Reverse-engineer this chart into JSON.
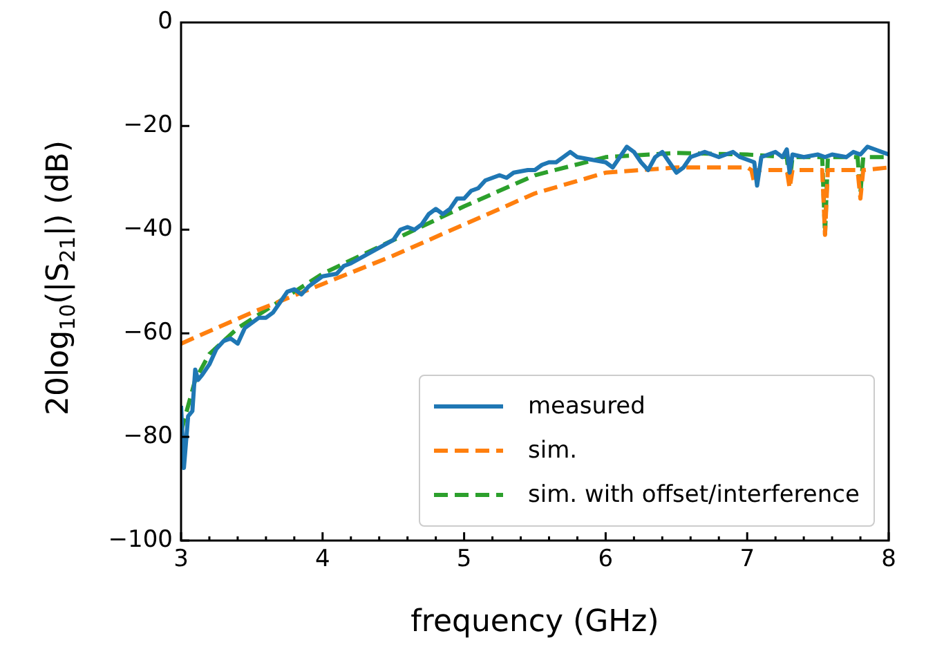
{
  "chart_data": {
    "type": "line",
    "xlabel": "frequency (GHz)",
    "ylabel": "20log$_{10}$(|S$_{21}$|) (dB)",
    "xlim": [
      3,
      8
    ],
    "xticks": [
      3,
      4,
      5,
      6,
      7,
      8
    ],
    "ylim": [
      -100,
      0
    ],
    "yticks": [
      {
        "value": -100,
        "label": "−100"
      },
      {
        "value": -80,
        "label": "−80"
      },
      {
        "value": -60,
        "label": "−60"
      },
      {
        "value": -40,
        "label": "−40"
      },
      {
        "value": -20,
        "label": "−20"
      },
      0
    ],
    "grid": false,
    "legend": "bottom right",
    "marker": "none",
    "series": [
      {
        "name": "measured",
        "color": "#1f77b4",
        "line_style": "solid",
        "x": [
          3.0,
          3.02,
          3.05,
          3.08,
          3.1,
          3.12,
          3.15,
          3.2,
          3.25,
          3.3,
          3.35,
          3.4,
          3.45,
          3.5,
          3.55,
          3.6,
          3.65,
          3.7,
          3.75,
          3.8,
          3.85,
          3.9,
          4.0,
          4.1,
          4.15,
          4.2,
          4.3,
          4.4,
          4.5,
          4.55,
          4.6,
          4.65,
          4.7,
          4.75,
          4.8,
          4.85,
          4.9,
          4.95,
          5.0,
          5.05,
          5.1,
          5.15,
          5.2,
          5.25,
          5.3,
          5.35,
          5.45,
          5.5,
          5.55,
          5.6,
          5.65,
          5.7,
          5.75,
          5.8,
          5.9,
          6.0,
          6.05,
          6.1,
          6.15,
          6.2,
          6.25,
          6.3,
          6.35,
          6.4,
          6.45,
          6.5,
          6.55,
          6.6,
          6.7,
          6.8,
          6.9,
          6.95,
          7.0,
          7.05,
          7.07,
          7.1,
          7.2,
          7.25,
          7.28,
          7.3,
          7.32,
          7.4,
          7.5,
          7.55,
          7.6,
          7.7,
          7.75,
          7.8,
          7.85,
          7.9,
          8.0
        ],
        "values": [
          -74,
          -86,
          -76,
          -75,
          -67,
          -69,
          -68,
          -66,
          -63,
          -61.5,
          -61,
          -62,
          -59,
          -58,
          -57,
          -57,
          -56,
          -54,
          -52,
          -51.5,
          -52.5,
          -51,
          -49,
          -48.5,
          -47,
          -46.5,
          -45,
          -43.5,
          -42,
          -40,
          -39.5,
          -40,
          -39,
          -37,
          -36,
          -37,
          -36,
          -34,
          -34,
          -32.5,
          -32,
          -30.5,
          -30,
          -29.5,
          -30,
          -29,
          -28.5,
          -28.5,
          -27.5,
          -27,
          -27,
          -26,
          -25,
          -26,
          -26.5,
          -27,
          -28,
          -26,
          -24,
          -25,
          -27,
          -28.5,
          -26,
          -25,
          -27,
          -29,
          -28,
          -26,
          -25,
          -26,
          -25,
          -26,
          -26.5,
          -27,
          -31.5,
          -26,
          -25,
          -26,
          -24.5,
          -29,
          -25.5,
          -26,
          -25.5,
          -26,
          -25.5,
          -26,
          -25,
          -25.5,
          -24,
          -24.5,
          -25.5
        ]
      },
      {
        "name": "sim.",
        "color": "#ff7f0e",
        "line_style": "dashed",
        "x": [
          3.0,
          3.5,
          4.0,
          4.5,
          5.0,
          5.5,
          6.0,
          6.5,
          7.0,
          7.03,
          7.05,
          7.07,
          7.28,
          7.3,
          7.32,
          7.53,
          7.55,
          7.57,
          7.78,
          7.8,
          7.82,
          8.0
        ],
        "values": [
          -62,
          -56,
          -50.5,
          -45,
          -39,
          -33,
          -29,
          -28,
          -28,
          -28.5,
          -31,
          -28.5,
          -28.5,
          -32,
          -28.5,
          -28.5,
          -41,
          -28.5,
          -28.5,
          -34,
          -28.5,
          -28
        ]
      },
      {
        "name": "sim. with offset/interference",
        "color": "#2ca02c",
        "line_style": "dashed",
        "x": [
          3.0,
          3.1,
          3.2,
          3.4,
          3.6,
          3.8,
          4.0,
          4.5,
          5.0,
          5.5,
          6.0,
          6.5,
          7.0,
          7.28,
          7.3,
          7.32,
          7.53,
          7.55,
          7.57,
          7.78,
          7.8,
          7.82,
          8.0
        ],
        "values": [
          -79,
          -69,
          -64,
          -59,
          -55.5,
          -52,
          -48.5,
          -42,
          -35.5,
          -29.5,
          -26,
          -25.2,
          -25.5,
          -26,
          -31,
          -26,
          -26,
          -41,
          -26,
          -26,
          -33,
          -26,
          -26
        ]
      }
    ]
  }
}
